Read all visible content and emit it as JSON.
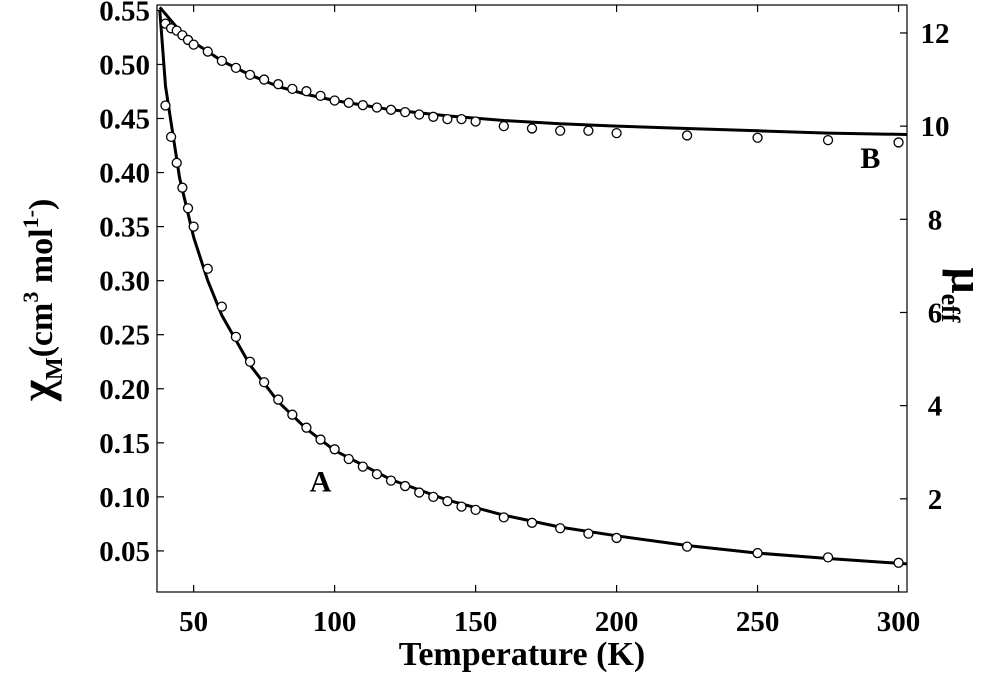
{
  "chart_data": {
    "type": "scatter",
    "title": "",
    "xlabel": "Temperature (K)",
    "ylabel_left": {
      "symbol": "χ",
      "sub": "M",
      "text": "(cm",
      "sup1": "3",
      "text2": " mol",
      "sup2": "1-",
      "close": ")"
    },
    "ylabel_right": {
      "symbol": "μ",
      "sub": "eff"
    },
    "xlim": [
      37,
      303
    ],
    "ylim_left": [
      0.012,
      0.555
    ],
    "ylim_right": [
      0,
      12.6
    ],
    "x_ticks": [
      50,
      100,
      150,
      200,
      250,
      300
    ],
    "y_left_ticks": [
      "0.05",
      "0.10",
      "0.15",
      "0.20",
      "0.25",
      "0.30",
      "0.35",
      "0.40",
      "0.45",
      "0.50",
      "0.55"
    ],
    "y_right_ticks": [
      "2",
      "4",
      "6",
      "8",
      "10",
      "12"
    ],
    "grid": false,
    "series": [
      {
        "name": "A",
        "axis": "left",
        "label_at": [
          95,
          0.105
        ],
        "x": [
          40,
          42,
          44,
          46,
          48,
          50,
          55,
          60,
          65,
          70,
          75,
          80,
          85,
          90,
          95,
          100,
          105,
          110,
          115,
          120,
          125,
          130,
          135,
          140,
          145,
          150,
          160,
          170,
          180,
          190,
          200,
          225,
          250,
          275,
          300
        ],
        "y": [
          0.462,
          0.433,
          0.409,
          0.386,
          0.367,
          0.35,
          0.311,
          0.276,
          0.248,
          0.225,
          0.206,
          0.19,
          0.176,
          0.164,
          0.153,
          0.144,
          0.135,
          0.128,
          0.121,
          0.115,
          0.11,
          0.104,
          0.1,
          0.096,
          0.091,
          0.088,
          0.081,
          0.076,
          0.071,
          0.066,
          0.062,
          0.054,
          0.048,
          0.044,
          0.039
        ],
        "fit": {
          "x": [
            38,
            40,
            45,
            50,
            55,
            60,
            70,
            80,
            90,
            100,
            120,
            140,
            160,
            180,
            200,
            225,
            250,
            275,
            303
          ],
          "y": [
            0.55,
            0.48,
            0.395,
            0.34,
            0.3,
            0.268,
            0.222,
            0.188,
            0.163,
            0.143,
            0.116,
            0.097,
            0.083,
            0.072,
            0.064,
            0.055,
            0.048,
            0.043,
            0.038
          ]
        }
      },
      {
        "name": "B",
        "axis": "right",
        "label_at": [
          290,
          9.1
        ],
        "x": [
          40,
          42,
          44,
          46,
          48,
          50,
          55,
          60,
          65,
          70,
          75,
          80,
          85,
          90,
          95,
          100,
          105,
          110,
          115,
          120,
          125,
          130,
          135,
          140,
          145,
          150,
          160,
          170,
          180,
          190,
          200,
          225,
          250,
          275,
          300
        ],
        "y": [
          12.2,
          12.1,
          12.05,
          11.95,
          11.85,
          11.75,
          11.6,
          11.4,
          11.25,
          11.1,
          11.0,
          10.9,
          10.8,
          10.75,
          10.65,
          10.55,
          10.5,
          10.45,
          10.4,
          10.35,
          10.3,
          10.25,
          10.2,
          10.15,
          10.15,
          10.1,
          10.0,
          9.95,
          9.9,
          9.9,
          9.85,
          9.8,
          9.75,
          9.7,
          9.65
        ],
        "fit": {
          "x": [
            38,
            45,
            50,
            60,
            70,
            80,
            90,
            100,
            120,
            140,
            160,
            180,
            200,
            225,
            250,
            275,
            303
          ],
          "y": [
            12.55,
            12.05,
            11.8,
            11.4,
            11.1,
            10.85,
            10.68,
            10.55,
            10.35,
            10.22,
            10.12,
            10.05,
            10.0,
            9.95,
            9.9,
            9.85,
            9.82
          ]
        }
      }
    ]
  }
}
